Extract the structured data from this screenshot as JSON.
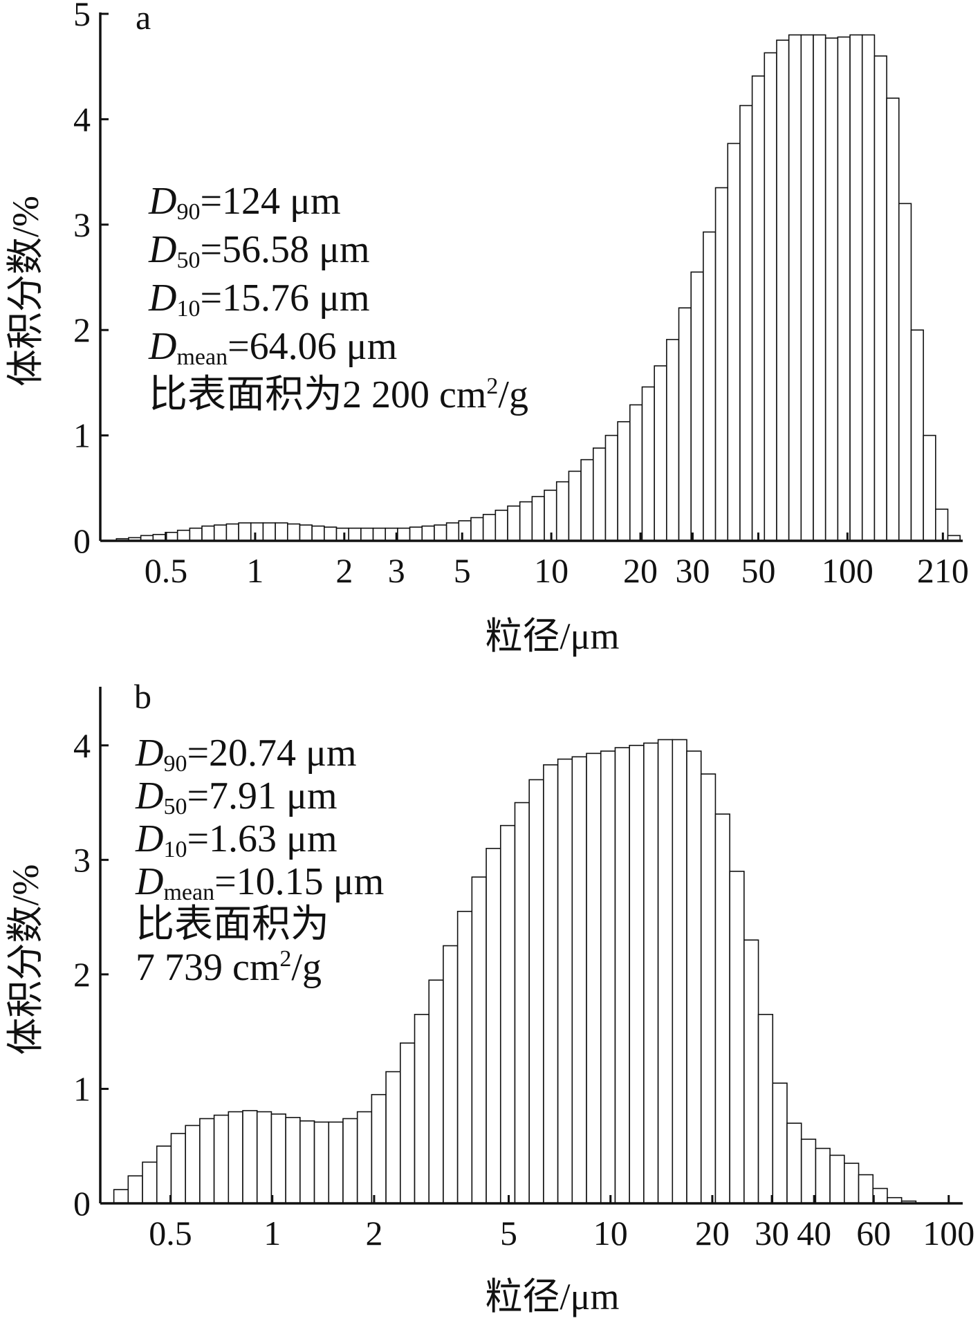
{
  "chart_data": [
    {
      "type": "bar",
      "panel_label": "a",
      "xlabel": "粒径/μm",
      "ylabel": "体积分数/%",
      "x_scale": "log",
      "xlim": [
        0.3,
        245
      ],
      "ylim": [
        0,
        5
      ],
      "xticks": [
        {
          "v": 0.5,
          "t": "0.5"
        },
        {
          "v": 1,
          "t": "1"
        },
        {
          "v": 2,
          "t": "2"
        },
        {
          "v": 3,
          "t": "3"
        },
        {
          "v": 5,
          "t": "5"
        },
        {
          "v": 10,
          "t": "10"
        },
        {
          "v": 20,
          "t": "20"
        },
        {
          "v": 30,
          "t": "30"
        },
        {
          "v": 50,
          "t": "50"
        },
        {
          "v": 100,
          "t": "100"
        },
        {
          "v": 210,
          "t": "210"
        }
      ],
      "yticks": [
        {
          "v": 0,
          "t": "0"
        },
        {
          "v": 1,
          "t": "1"
        },
        {
          "v": 2,
          "t": "2"
        },
        {
          "v": 3,
          "t": "3"
        },
        {
          "v": 4,
          "t": "4"
        },
        {
          "v": 5,
          "t": "5"
        }
      ],
      "bin_start": 0.34,
      "bin_end": 240,
      "values": [
        0.02,
        0.03,
        0.05,
        0.06,
        0.08,
        0.1,
        0.12,
        0.14,
        0.15,
        0.16,
        0.17,
        0.17,
        0.17,
        0.17,
        0.16,
        0.15,
        0.14,
        0.13,
        0.12,
        0.12,
        0.12,
        0.12,
        0.12,
        0.12,
        0.13,
        0.14,
        0.15,
        0.17,
        0.19,
        0.22,
        0.25,
        0.29,
        0.33,
        0.37,
        0.42,
        0.48,
        0.56,
        0.66,
        0.77,
        0.88,
        1.0,
        1.13,
        1.29,
        1.46,
        1.66,
        1.91,
        2.21,
        2.55,
        2.93,
        3.35,
        3.77,
        4.13,
        4.41,
        4.63,
        4.75,
        4.8,
        4.8,
        4.8,
        4.77,
        4.78,
        4.8,
        4.8,
        4.6,
        4.2,
        3.2,
        2.0,
        1.0,
        0.3,
        0.05
      ],
      "annotations": [
        {
          "sym": "D",
          "sub": "90",
          "rest": "=124 μm"
        },
        {
          "sym": "D",
          "sub": "50",
          "rest": "=56.58 μm"
        },
        {
          "sym": "D",
          "sub": "10",
          "rest": "=15.76 μm"
        },
        {
          "sym": "D",
          "sub": "mean",
          "rest": "=64.06 μm"
        },
        {
          "pre": "比表面积为2 200 cm",
          "sup": "2",
          "post": "/g"
        }
      ]
    },
    {
      "type": "bar",
      "panel_label": "b",
      "xlabel": "粒径/μm",
      "ylabel": "体积分数/%",
      "x_scale": "log",
      "xlim": [
        0.31,
        110
      ],
      "ylim": [
        0,
        4.5
      ],
      "xticks": [
        {
          "v": 0.5,
          "t": "0.5"
        },
        {
          "v": 1,
          "t": "1"
        },
        {
          "v": 2,
          "t": "2"
        },
        {
          "v": 5,
          "t": "5"
        },
        {
          "v": 10,
          "t": "10"
        },
        {
          "v": 20,
          "t": "20"
        },
        {
          "v": 30,
          "t": "30"
        },
        {
          "v": 40,
          "t": "40"
        },
        {
          "v": 60,
          "t": "60"
        },
        {
          "v": 100,
          "t": "100"
        }
      ],
      "yticks": [
        {
          "v": 0,
          "t": "0"
        },
        {
          "v": 1,
          "t": "1"
        },
        {
          "v": 2,
          "t": "2"
        },
        {
          "v": 3,
          "t": "3"
        },
        {
          "v": 4,
          "t": "4"
        }
      ],
      "bin_start": 0.34,
      "bin_end": 80,
      "values": [
        0.12,
        0.24,
        0.36,
        0.5,
        0.61,
        0.68,
        0.74,
        0.77,
        0.8,
        0.81,
        0.8,
        0.78,
        0.75,
        0.72,
        0.71,
        0.71,
        0.74,
        0.8,
        0.95,
        1.15,
        1.4,
        1.65,
        1.95,
        2.25,
        2.55,
        2.85,
        3.1,
        3.3,
        3.5,
        3.7,
        3.83,
        3.88,
        3.9,
        3.93,
        3.95,
        3.98,
        4.0,
        4.02,
        4.05,
        4.05,
        3.95,
        3.75,
        3.4,
        2.9,
        2.3,
        1.65,
        1.05,
        0.7,
        0.56,
        0.48,
        0.42,
        0.35,
        0.25,
        0.13,
        0.05,
        0.02
      ],
      "annotations": [
        {
          "sym": "D",
          "sub": "90",
          "rest": "=20.74 μm"
        },
        {
          "sym": "D",
          "sub": "50",
          "rest": "=7.91 μm"
        },
        {
          "sym": "D",
          "sub": "10",
          "rest": "=1.63 μm"
        },
        {
          "sym": "D",
          "sub": "mean",
          "rest": "=10.15 μm"
        },
        {
          "pre": "比表面积为"
        },
        {
          "pre": "7 739 cm",
          "sup": "2",
          "post": "/g"
        }
      ]
    }
  ]
}
